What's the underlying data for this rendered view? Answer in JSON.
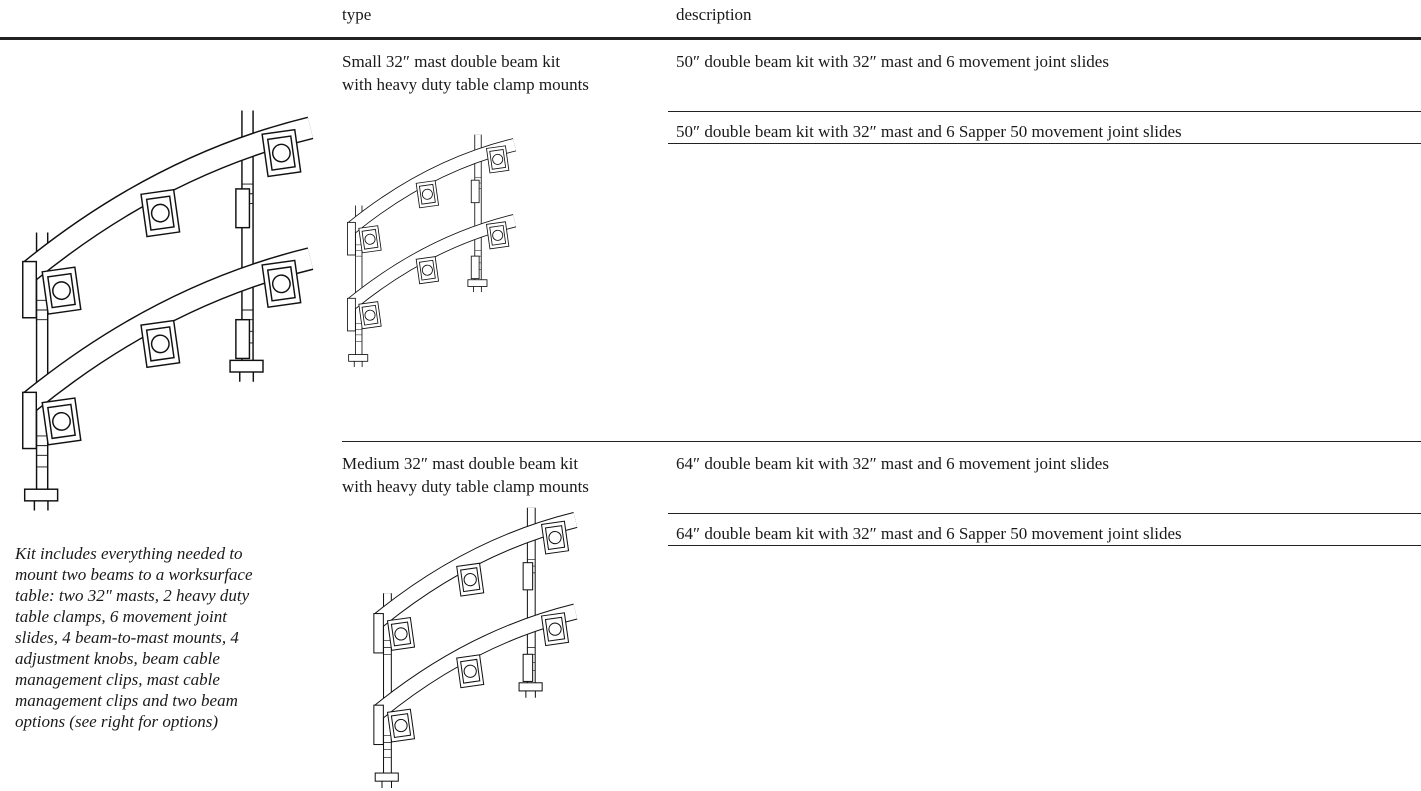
{
  "header": {
    "columns": [
      "type",
      "description"
    ]
  },
  "intro": {
    "caption_lines": [
      "Kit includes everything needed to",
      "mount two beams to a worksurface",
      "table: two 32″ masts, 2 heavy duty",
      "table clamps, 6 movement joint",
      "slides, 4 beam-to-mast mounts, 4",
      "adjustment knobs, beam cable",
      "management clips, mast cable",
      "management clips and two beam",
      "options (see right for options)"
    ]
  },
  "rows": [
    {
      "type_lines": [
        "Small 32″ mast double beam kit",
        "with heavy duty table clamp mounts"
      ],
      "descriptions": [
        "50″ double beam kit with 32″ mast and 6 movement joint slides",
        "50″ double beam kit with 32″ mast and 6 Sapper 50 movement joint slides"
      ]
    },
    {
      "type_lines": [
        "Medium 32″ mast double beam kit",
        "with heavy duty table clamp mounts"
      ],
      "descriptions": [
        "64″ double beam kit with 32″ mast and 6 movement joint slides",
        "64″ double beam kit with 32″ mast and 6 Sapper 50 movement joint slides"
      ]
    }
  ]
}
